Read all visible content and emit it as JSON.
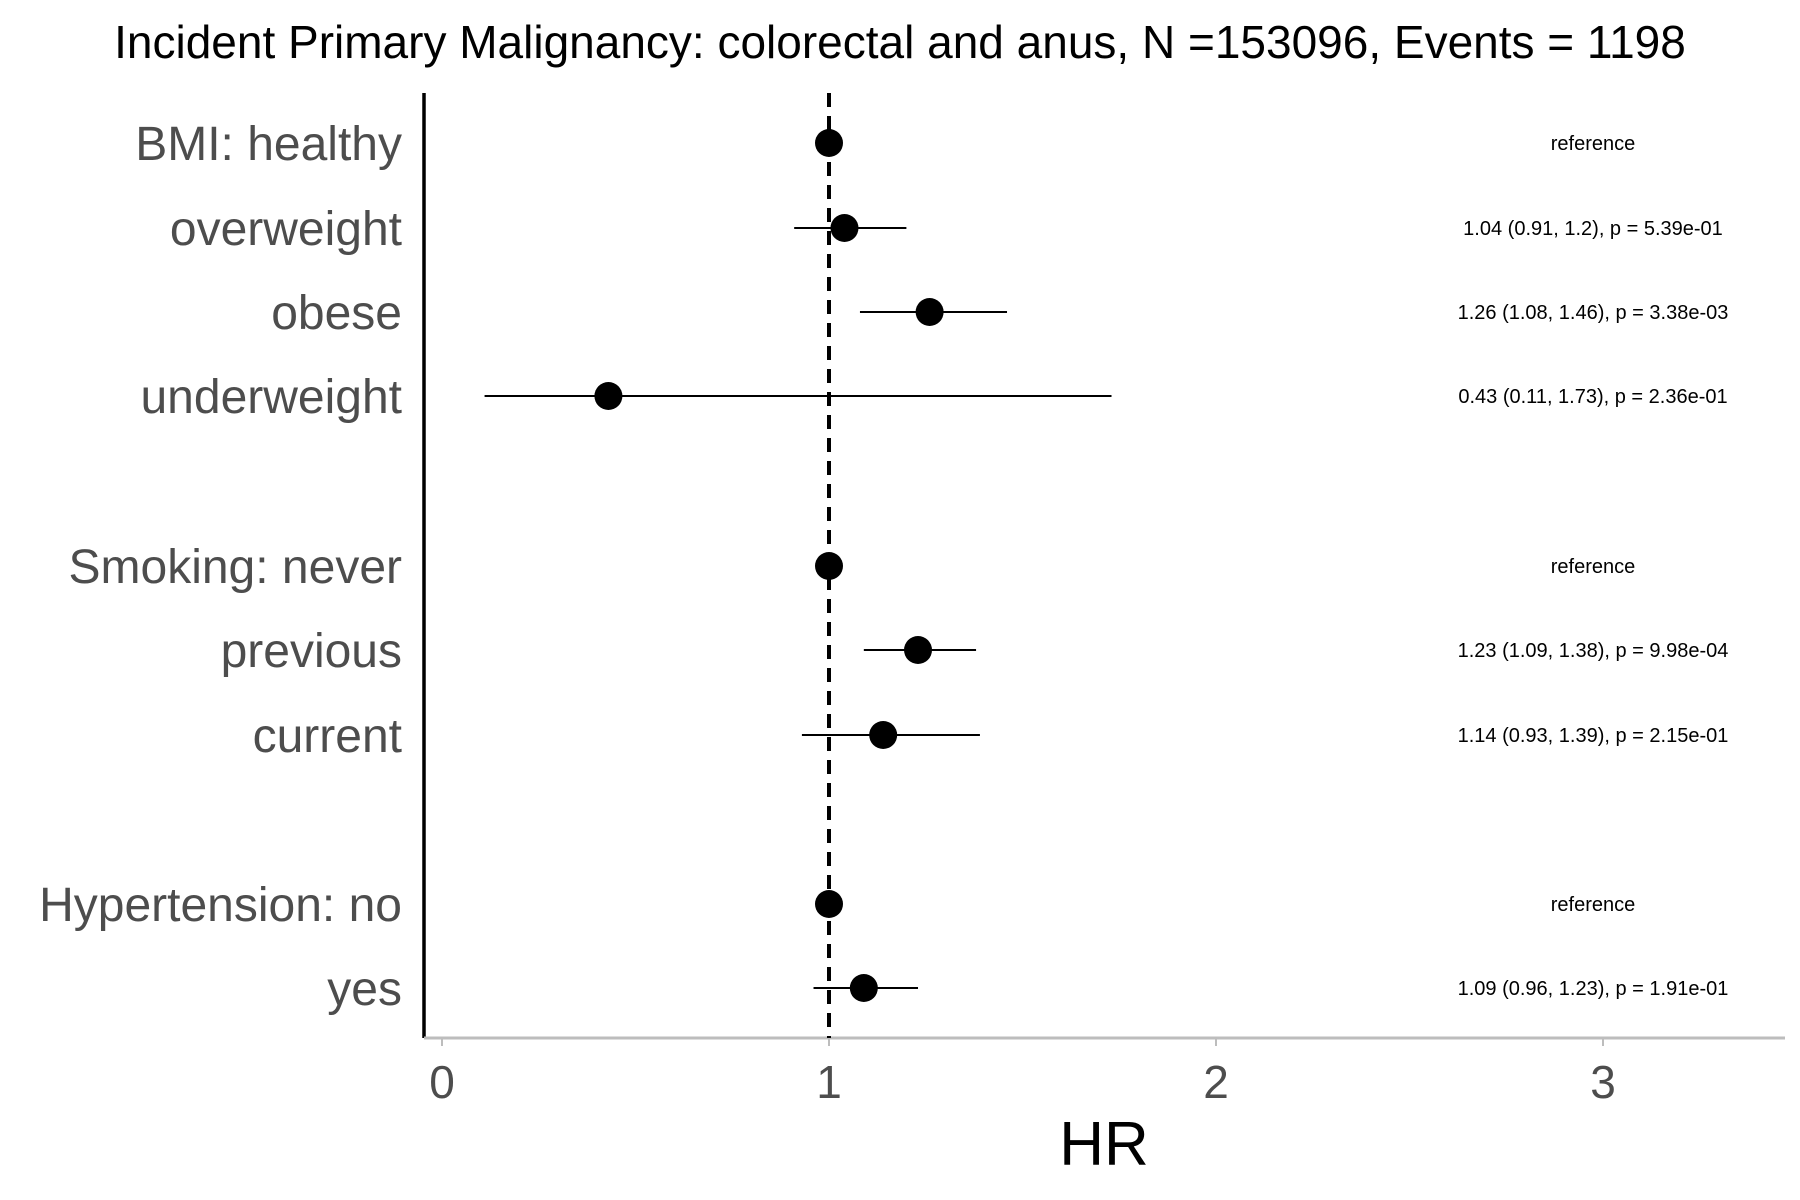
{
  "chart_data": {
    "type": "scatter",
    "subtype": "forest",
    "title": "Incident Primary Malignancy: colorectal and anus, N =153096, Events = 1198",
    "xlabel": "HR",
    "ylabel": "",
    "xlim": [
      -0.05,
      3.5
    ],
    "x_ticks": [
      0,
      1,
      2,
      3
    ],
    "x_tick_labels": [
      "0",
      "1",
      "2",
      "3"
    ],
    "reference_line": 1,
    "grid": false,
    "rows": [
      {
        "label": "BMI: healthy",
        "hr": 1.0,
        "ci_low": null,
        "ci_high": null,
        "annotation": "reference"
      },
      {
        "label": "overweight",
        "hr": 1.04,
        "ci_low": 0.91,
        "ci_high": 1.2,
        "annotation": "1.04 (0.91, 1.2), p = 5.39e-01"
      },
      {
        "label": "obese",
        "hr": 1.26,
        "ci_low": 1.08,
        "ci_high": 1.46,
        "annotation": "1.26 (1.08, 1.46), p = 3.38e-03"
      },
      {
        "label": "underweight",
        "hr": 0.43,
        "ci_low": 0.11,
        "ci_high": 1.73,
        "annotation": "0.43 (0.11, 1.73), p = 2.36e-01"
      },
      {
        "label": "Smoking: never",
        "hr": 1.0,
        "ci_low": null,
        "ci_high": null,
        "annotation": "reference"
      },
      {
        "label": "previous",
        "hr": 1.23,
        "ci_low": 1.09,
        "ci_high": 1.38,
        "annotation": "1.23 (1.09, 1.38), p = 9.98e-04"
      },
      {
        "label": "current",
        "hr": 1.14,
        "ci_low": 0.93,
        "ci_high": 1.39,
        "annotation": "1.14 (0.93, 1.39), p = 2.15e-01"
      },
      {
        "label": "Hypertension: no",
        "hr": 1.0,
        "ci_low": null,
        "ci_high": null,
        "annotation": "reference"
      },
      {
        "label": "yes",
        "hr": 1.09,
        "ci_low": 0.96,
        "ci_high": 1.23,
        "annotation": "1.09 (0.96, 1.23), p = 1.91e-01"
      }
    ]
  }
}
